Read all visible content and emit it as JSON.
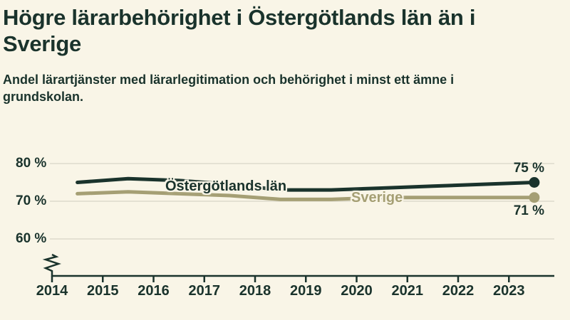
{
  "header": {
    "title": "Högre lärarbehörighet i Östergötlands län än i\nSverige",
    "subtitle": "Andel lärartjänster med lärarlegitimation och behörighet i minst ett ämne i\ngrundskolan."
  },
  "colors": {
    "background": "#f9f5e7",
    "dark_green": "#1a332c",
    "olive": "#a59f74",
    "gridline": "#e4e1d3"
  },
  "chart_data": {
    "type": "line",
    "title": "Högre lärarbehörighet i Östergötlands län än i Sverige",
    "subtitle": "Andel lärartjänster med lärarlegitimation och behörighet i minst ett ämne i grundskolan.",
    "x_tick_labels": [
      "2014",
      "2015",
      "2016",
      "2017",
      "2018",
      "2019",
      "2020",
      "2021",
      "2022",
      "2023"
    ],
    "x_mid_years": [
      2014.5,
      2015.5,
      2016.5,
      2017.5,
      2018.5,
      2019.5,
      2020.5,
      2021.5,
      2022.5,
      2023.5
    ],
    "y_ticks": [
      {
        "value": 80,
        "label": "80 %"
      },
      {
        "value": 70,
        "label": "70 %"
      },
      {
        "value": 60,
        "label": "60 %"
      }
    ],
    "ylim_displayed": [
      60,
      80
    ],
    "axis_break": true,
    "grid": true,
    "legend_position": "inline-on-lines",
    "series": [
      {
        "name": "Östergötlands län",
        "color": "#1a332c",
        "values": [
          75,
          76,
          75.5,
          74.5,
          73,
          73,
          73.5,
          74,
          74.5,
          75
        ],
        "end_label": "75 %"
      },
      {
        "name": "Sverige",
        "color": "#a59f74",
        "values": [
          72,
          72.5,
          72,
          71.5,
          70.5,
          70.5,
          71,
          71,
          71,
          71
        ],
        "end_label": "71 %"
      }
    ]
  }
}
